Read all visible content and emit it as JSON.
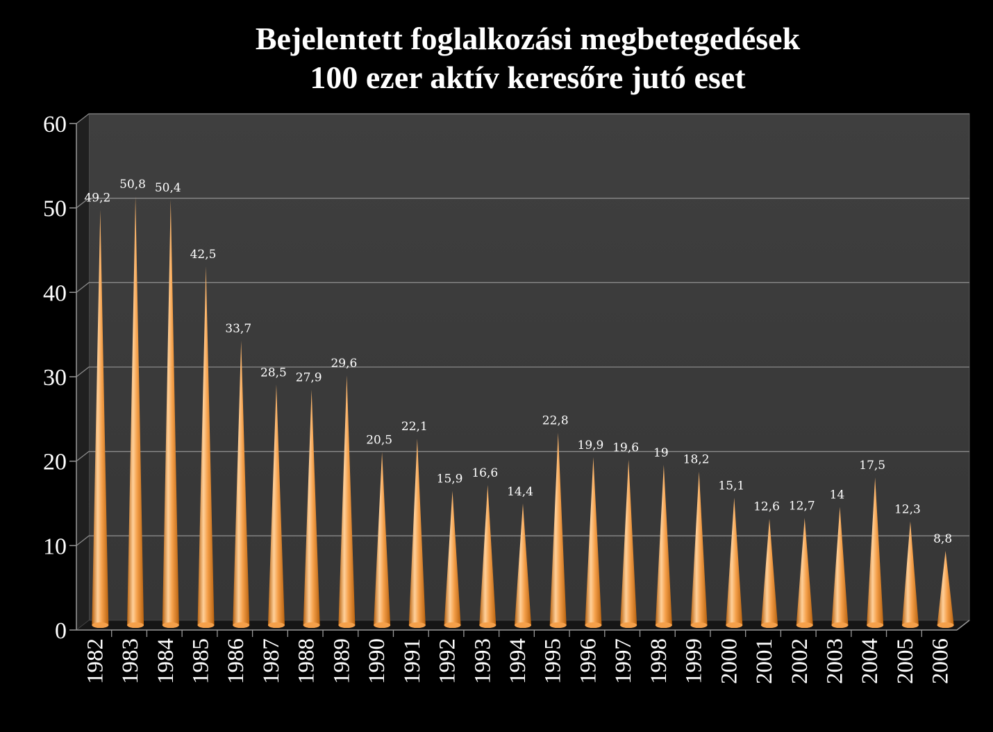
{
  "chart_data": {
    "type": "bar",
    "title_line1": "Bejelentett foglalkozási megbetegedések",
    "title_line2": "100 ezer aktív keresőre jutó eset",
    "categories": [
      "1982",
      "1983",
      "1984",
      "1985",
      "1986",
      "1987",
      "1988",
      "1989",
      "1990",
      "1991",
      "1992",
      "1993",
      "1994",
      "1995",
      "1996",
      "1997",
      "1998",
      "1999",
      "2000",
      "2001",
      "2002",
      "2003",
      "2004",
      "2005",
      "2006"
    ],
    "values": [
      49.2,
      50.8,
      50.4,
      42.5,
      33.7,
      28.5,
      27.9,
      29.6,
      20.5,
      22.1,
      15.9,
      16.6,
      14.4,
      22.8,
      19.9,
      19.6,
      19,
      18.2,
      15.1,
      12.6,
      12.7,
      14,
      17.5,
      12.3,
      8.8
    ],
    "data_labels": [
      "49,2",
      "50,8",
      "50,4",
      "42,5",
      "33,7",
      "28,5",
      "27,9",
      "29,6",
      "20,5",
      "22,1",
      "15,9",
      "16,6",
      "14,4",
      "22,8",
      "19,9",
      "19,6",
      "19",
      "18,2",
      "15,1",
      "12,6",
      "12,7",
      "14",
      "17,5",
      "12,3",
      "8,8"
    ],
    "ylim": [
      0,
      60
    ],
    "yticks": [
      "0",
      "10",
      "20",
      "30",
      "40",
      "50",
      "60"
    ],
    "grid": true,
    "colors": {
      "bar": "#f5a04a",
      "bar_light": "#ffd09a",
      "bar_dark": "#b8620f",
      "plot_bg": "#3b3b3b",
      "wall_side": "#202020",
      "floor": "#161616",
      "grid": "#8a8a8a",
      "background": "#000000"
    }
  }
}
